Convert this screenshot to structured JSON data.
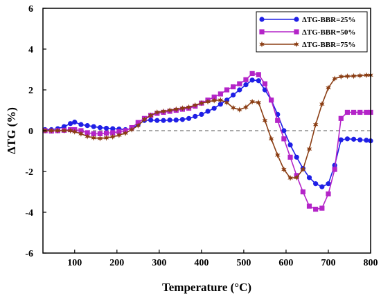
{
  "chart_data": {
    "type": "line",
    "title": "",
    "xlabel": "Temperature (°C)",
    "ylabel": "ΔTG (%)",
    "xlim": [
      25,
      800
    ],
    "ylim": [
      -6,
      6
    ],
    "xticks": [
      100,
      200,
      300,
      400,
      500,
      600,
      700,
      800
    ],
    "yticks": [
      -6,
      -4,
      -2,
      0,
      2,
      4,
      6
    ],
    "reference_line": {
      "y": 0,
      "style": "dashed"
    },
    "grid": false,
    "legend_position": "top-right",
    "series": [
      {
        "name": "ΔTG-BBR=25%",
        "color": "#1f1fe6",
        "marker": "circle",
        "x": [
          30,
          45,
          60,
          75,
          90,
          100,
          115,
          130,
          145,
          160,
          175,
          190,
          205,
          220,
          235,
          250,
          265,
          280,
          295,
          310,
          325,
          340,
          355,
          370,
          385,
          400,
          415,
          430,
          445,
          460,
          475,
          490,
          505,
          520,
          535,
          550,
          565,
          580,
          595,
          610,
          625,
          640,
          655,
          670,
          685,
          700,
          715,
          730,
          745,
          760,
          775,
          790,
          800
        ],
        "y": [
          0.05,
          0.05,
          0.1,
          0.2,
          0.35,
          0.42,
          0.3,
          0.25,
          0.2,
          0.15,
          0.12,
          0.1,
          0.08,
          0.05,
          0.1,
          0.3,
          0.5,
          0.52,
          0.5,
          0.5,
          0.52,
          0.52,
          0.55,
          0.6,
          0.7,
          0.8,
          0.95,
          1.1,
          1.3,
          1.5,
          1.75,
          2.0,
          2.25,
          2.48,
          2.45,
          2.0,
          1.5,
          0.8,
          0.0,
          -0.7,
          -1.3,
          -1.85,
          -2.3,
          -2.6,
          -2.75,
          -2.6,
          -1.7,
          -0.45,
          -0.4,
          -0.42,
          -0.45,
          -0.47,
          -0.5
        ]
      },
      {
        "name": "ΔTG-BBR=50%",
        "color": "#b424c8",
        "marker": "square",
        "x": [
          30,
          45,
          60,
          75,
          90,
          100,
          115,
          130,
          145,
          160,
          175,
          190,
          205,
          220,
          235,
          250,
          265,
          280,
          295,
          310,
          325,
          340,
          355,
          370,
          385,
          400,
          415,
          430,
          445,
          460,
          475,
          490,
          505,
          520,
          535,
          550,
          565,
          580,
          595,
          610,
          625,
          640,
          655,
          670,
          685,
          700,
          715,
          730,
          745,
          760,
          775,
          790,
          800
        ],
        "y": [
          0.0,
          -0.02,
          0.0,
          0.02,
          0.05,
          0.05,
          0.0,
          -0.1,
          -0.15,
          -0.15,
          -0.12,
          -0.1,
          -0.05,
          0.0,
          0.15,
          0.4,
          0.6,
          0.75,
          0.85,
          0.9,
          0.95,
          1.0,
          1.05,
          1.1,
          1.2,
          1.35,
          1.5,
          1.65,
          1.8,
          2.0,
          2.15,
          2.3,
          2.5,
          2.8,
          2.75,
          2.3,
          1.5,
          0.5,
          -0.4,
          -1.3,
          -2.2,
          -3.0,
          -3.7,
          -3.85,
          -3.8,
          -3.1,
          -1.9,
          0.6,
          0.9,
          0.9,
          0.9,
          0.9,
          0.9
        ]
      },
      {
        "name": "ΔTG-BBR=75%",
        "color": "#8b3e14",
        "marker": "star",
        "x": [
          30,
          45,
          60,
          75,
          90,
          100,
          115,
          130,
          145,
          160,
          175,
          190,
          205,
          220,
          235,
          250,
          265,
          280,
          295,
          310,
          325,
          340,
          355,
          370,
          385,
          400,
          415,
          430,
          445,
          460,
          475,
          490,
          505,
          520,
          535,
          550,
          565,
          580,
          595,
          610,
          625,
          640,
          655,
          670,
          685,
          700,
          715,
          730,
          745,
          760,
          775,
          790,
          800
        ],
        "y": [
          0.0,
          0.0,
          0.0,
          0.0,
          0.0,
          -0.05,
          -0.15,
          -0.28,
          -0.35,
          -0.38,
          -0.35,
          -0.3,
          -0.22,
          -0.12,
          0.05,
          0.25,
          0.55,
          0.75,
          0.9,
          0.95,
          1.0,
          1.05,
          1.1,
          1.15,
          1.25,
          1.35,
          1.42,
          1.48,
          1.5,
          1.38,
          1.12,
          1.03,
          1.15,
          1.42,
          1.38,
          0.5,
          -0.4,
          -1.2,
          -1.9,
          -2.32,
          -2.3,
          -1.9,
          -0.9,
          0.3,
          1.3,
          2.1,
          2.55,
          2.65,
          2.67,
          2.68,
          2.7,
          2.72,
          2.72
        ]
      }
    ]
  }
}
